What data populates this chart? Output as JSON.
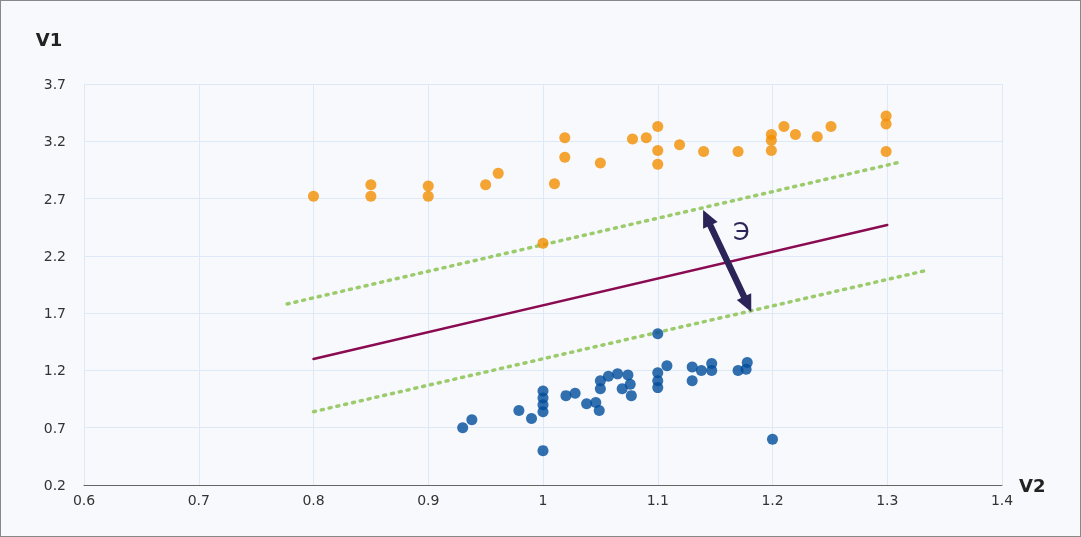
{
  "chart_data": {
    "type": "scatter",
    "xlabel": "V2",
    "ylabel": "V1",
    "xlim": [
      0.6,
      1.4
    ],
    "ylim": [
      0.2,
      3.7
    ],
    "xticks": [
      0.6,
      0.7,
      0.8,
      0.9,
      1,
      1.1,
      1.2,
      1.3,
      1.4
    ],
    "yticks": [
      0.2,
      0.7,
      1.2,
      1.7,
      2.2,
      2.7,
      3.2,
      3.7
    ],
    "grid": true,
    "annotations": [
      "Э"
    ],
    "series": [
      {
        "color": "#f28e00",
        "marker": "circle",
        "x": [
          0.8,
          0.85,
          0.85,
          0.9,
          0.9,
          0.95,
          0.961,
          1.0,
          1.01,
          1.019,
          1.019,
          1.05,
          1.078,
          1.09,
          1.1,
          1.1,
          1.1,
          1.119,
          1.14,
          1.17,
          1.199,
          1.199,
          1.199,
          1.21,
          1.22,
          1.239,
          1.251,
          1.299,
          1.299,
          1.299
        ],
        "values": [
          2.72,
          2.82,
          2.72,
          2.81,
          2.72,
          2.82,
          2.92,
          2.31,
          2.83,
          3.23,
          3.06,
          3.01,
          3.22,
          3.23,
          3.33,
          3.12,
          3.0,
          3.17,
          3.11,
          3.11,
          3.26,
          3.21,
          3.12,
          3.33,
          3.26,
          3.24,
          3.33,
          3.42,
          3.35,
          3.11
        ]
      },
      {
        "color": "#004c9b",
        "marker": "circle",
        "x": [
          0.93,
          0.938,
          0.979,
          0.99,
          1.0,
          1.0,
          1.0,
          1.0,
          1.0,
          1.02,
          1.028,
          1.038,
          1.046,
          1.049,
          1.05,
          1.05,
          1.057,
          1.065,
          1.074,
          1.076,
          1.069,
          1.077,
          1.1,
          1.1,
          1.1,
          1.1,
          1.108,
          1.13,
          1.13,
          1.138,
          1.147,
          1.147,
          1.17,
          1.177,
          1.178,
          1.2
        ],
        "values": [
          0.7,
          0.77,
          0.85,
          0.78,
          1.02,
          0.96,
          0.9,
          0.84,
          0.5,
          0.98,
          1.0,
          0.91,
          0.92,
          0.85,
          1.11,
          1.04,
          1.15,
          1.17,
          1.16,
          1.08,
          1.04,
          0.98,
          1.52,
          1.18,
          1.11,
          1.05,
          1.24,
          1.23,
          1.11,
          1.2,
          1.26,
          1.2,
          1.2,
          1.21,
          1.27,
          0.6
        ]
      },
      {
        "type": "line",
        "color": "#8b0b52",
        "line_style": "solid",
        "marker": "none",
        "x": [
          0.8,
          1.3
        ],
        "values": [
          1.3,
          2.47
        ]
      },
      {
        "type": "line",
        "color": "#9bcb6b",
        "line_style": "dotted",
        "marker": "none",
        "x": [
          0.777,
          1.312
        ],
        "values": [
          1.78,
          3.02
        ]
      },
      {
        "type": "line",
        "color": "#9bcb6b",
        "line_style": "dotted",
        "marker": "none",
        "x": [
          0.8,
          1.333
        ],
        "values": [
          0.84,
          2.07
        ]
      }
    ]
  }
}
